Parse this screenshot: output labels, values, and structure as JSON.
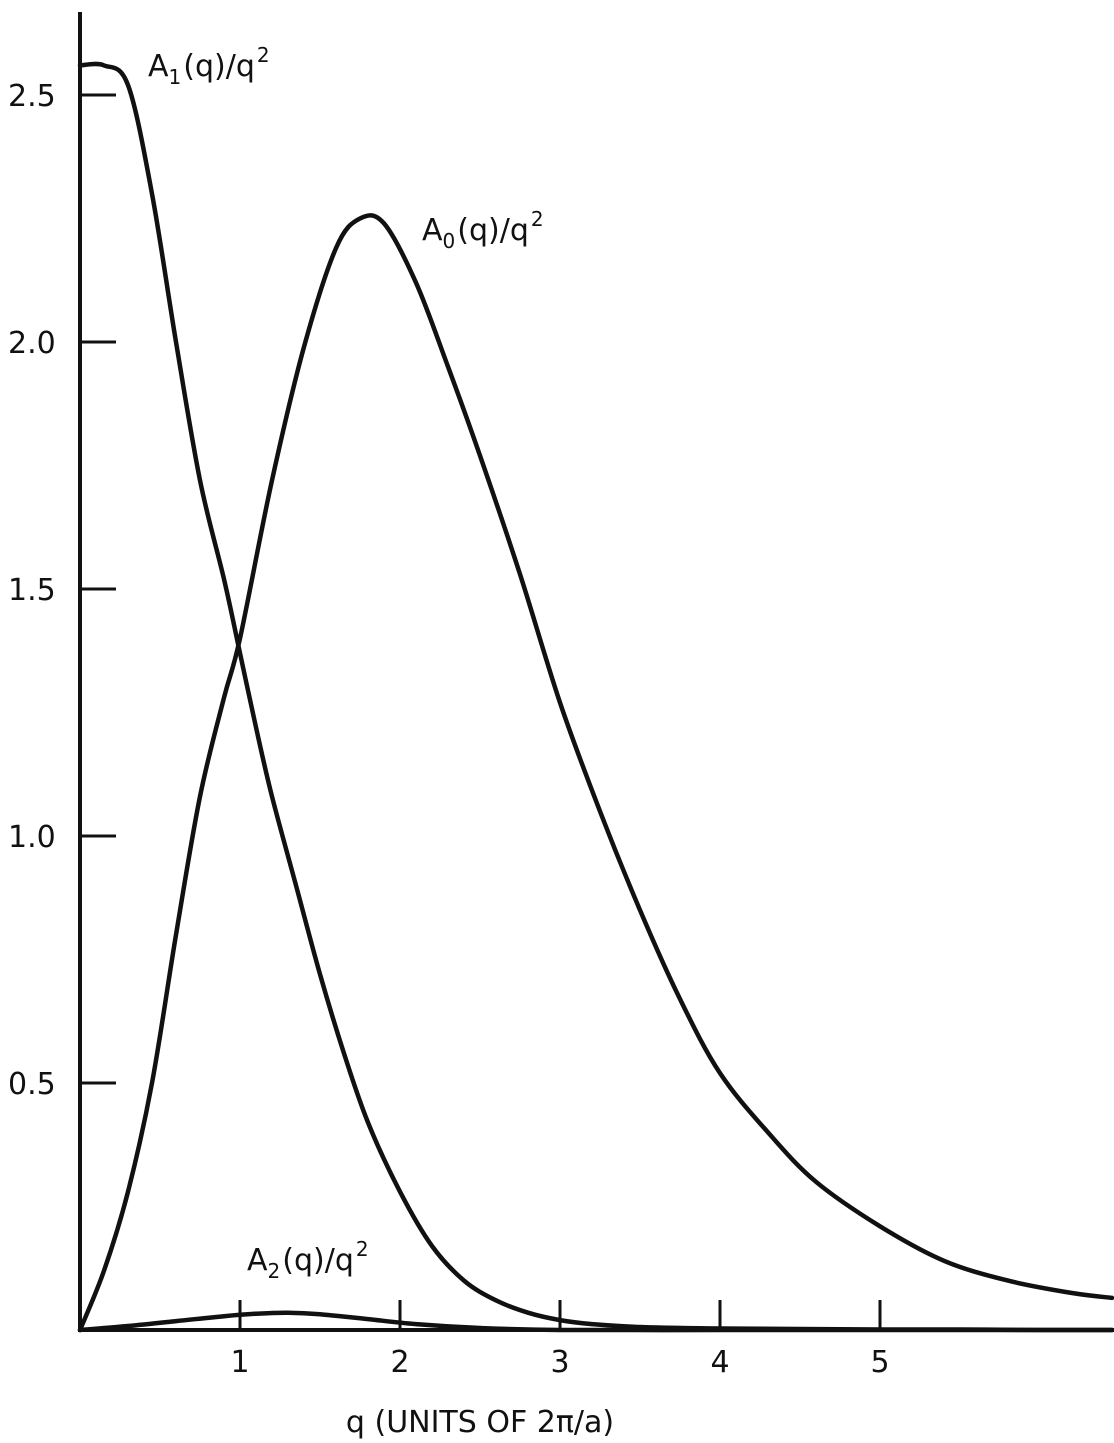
{
  "chart_data": {
    "type": "line",
    "title": "",
    "xlabel": "q (UNITS OF 2π/a)",
    "ylabel": "",
    "xlim": [
      0,
      6.45
    ],
    "ylim": [
      0,
      2.68
    ],
    "x_ticks": [
      {
        "value": 1,
        "label": "1"
      },
      {
        "value": 2,
        "label": "2"
      },
      {
        "value": 3,
        "label": "3"
      },
      {
        "value": 4,
        "label": "4"
      },
      {
        "value": 5,
        "label": "5"
      }
    ],
    "y_ticks": [
      {
        "value": 0.5,
        "label": "0.5"
      },
      {
        "value": 1.0,
        "label": "1.0"
      },
      {
        "value": 1.5,
        "label": "1.5"
      },
      {
        "value": 2.0,
        "label": "2.0"
      },
      {
        "value": 2.5,
        "label": "2.5"
      }
    ],
    "grid": false,
    "series": [
      {
        "name": "A1(q)/q2",
        "label_parts": {
          "base": "A",
          "sub": "1",
          "mid": "(q)/q",
          "sup": "2"
        },
        "x": [
          0.0,
          0.15,
          0.3,
          0.45,
          0.6,
          0.75,
          0.9,
          1.0,
          1.1,
          1.2,
          1.35,
          1.5,
          1.65,
          1.8,
          2.0,
          2.2,
          2.4,
          2.6,
          2.8,
          3.0,
          3.2,
          3.5,
          4.0,
          4.5,
          5.0,
          5.5,
          6.0,
          6.45
        ],
        "y": [
          2.56,
          2.56,
          2.52,
          2.3,
          2.0,
          1.72,
          1.52,
          1.37,
          1.22,
          1.08,
          0.9,
          0.72,
          0.56,
          0.42,
          0.28,
          0.17,
          0.1,
          0.06,
          0.035,
          0.02,
          0.012,
          0.006,
          0.003,
          0.002,
          0.001,
          0.001,
          0.0,
          0.0
        ]
      },
      {
        "name": "A0(q)/q2",
        "label_parts": {
          "base": "A",
          "sub": "0",
          "mid": "(q)/q",
          "sup": "2"
        },
        "x": [
          0.0,
          0.15,
          0.3,
          0.45,
          0.6,
          0.75,
          0.9,
          1.0,
          1.2,
          1.4,
          1.6,
          1.75,
          1.9,
          2.1,
          2.3,
          2.5,
          2.75,
          3.0,
          3.25,
          3.5,
          3.75,
          4.0,
          4.3,
          4.6,
          5.0,
          5.4,
          5.8,
          6.2,
          6.45
        ],
        "y": [
          0.0,
          0.12,
          0.28,
          0.5,
          0.8,
          1.08,
          1.28,
          1.4,
          1.72,
          1.99,
          2.19,
          2.25,
          2.24,
          2.12,
          1.95,
          1.77,
          1.53,
          1.27,
          1.05,
          0.85,
          0.67,
          0.52,
          0.4,
          0.3,
          0.21,
          0.14,
          0.1,
          0.075,
          0.065
        ]
      },
      {
        "name": "A2(q)/q2",
        "label_parts": {
          "base": "A",
          "sub": "2",
          "mid": "(q)/q",
          "sup": "2"
        },
        "x": [
          0.0,
          0.3,
          0.6,
          0.9,
          1.1,
          1.3,
          1.5,
          1.8,
          2.1,
          2.5,
          3.0,
          4.0,
          5.0,
          6.45
        ],
        "y": [
          0.0,
          0.008,
          0.018,
          0.028,
          0.033,
          0.035,
          0.032,
          0.022,
          0.012,
          0.004,
          0.0,
          0.0,
          0.0,
          0.0
        ]
      }
    ],
    "annotations": [
      {
        "series": "A1(q)/q2"
      },
      {
        "series": "A0(q)/q2"
      },
      {
        "series": "A2(q)/q2"
      }
    ]
  }
}
